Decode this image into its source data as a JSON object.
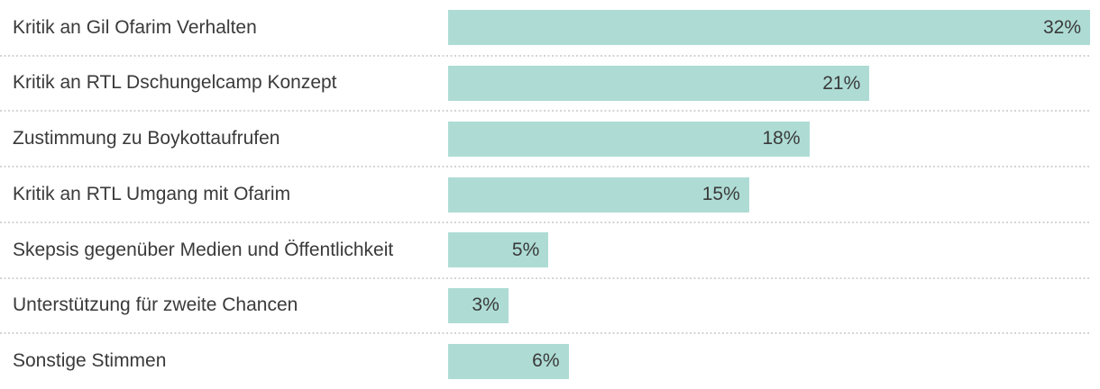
{
  "chart_data": {
    "type": "bar",
    "orientation": "horizontal",
    "title": "",
    "xlabel": "",
    "ylabel": "",
    "categories": [
      "Kritik an Gil Ofarim Verhalten",
      "Kritik an RTL Dschungelcamp Konzept",
      "Zustimmung zu Boykottaufrufen",
      "Kritik an RTL Umgang mit Ofarim",
      "Skepsis gegenüber Medien und Öffentlichkeit",
      "Unterstützung für zweite Chancen",
      "Sonstige Stimmen"
    ],
    "values": [
      32,
      21,
      18,
      15,
      5,
      3,
      6
    ],
    "value_labels": [
      "32%",
      "21%",
      "18%",
      "15%",
      "5%",
      "3%",
      "6%"
    ],
    "xlim": [
      0,
      32
    ],
    "grid": false,
    "legend": false,
    "value_label_position": "inside-end",
    "bar_color": "#aedcd5",
    "label_color": "#3a3a3a",
    "separator_color": "#d4d4d4",
    "background_color": "#ffffff"
  }
}
